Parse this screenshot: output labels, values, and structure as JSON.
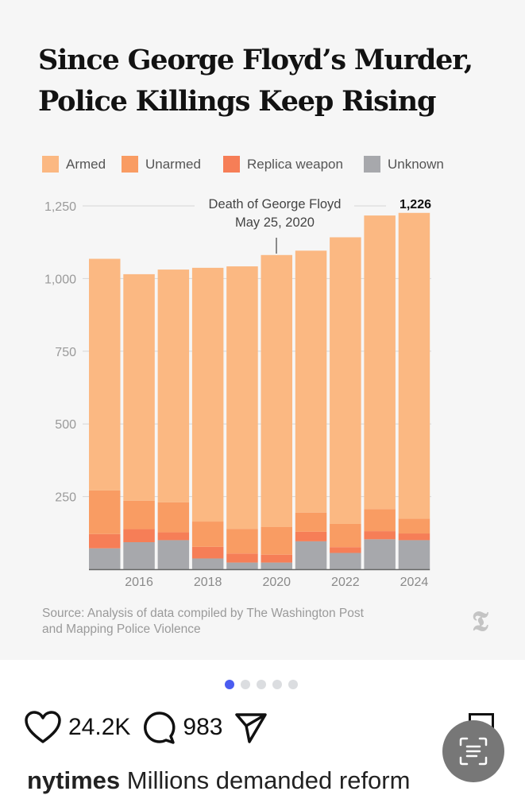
{
  "post": {
    "title_line1": "Since George Floyd’s Murder,",
    "title_line2": "Police Killings Keep Rising",
    "source_line1": "Source: Analysis of data compiled by The Washington Post",
    "source_line2": "and Mapping Police Violence",
    "logo_text": "𝕿",
    "carousel": {
      "total": 5,
      "active": 0
    },
    "likes": "24.2K",
    "comments": "983",
    "caption_user": "nytimes",
    "caption_text": "Millions demanded reform"
  },
  "chart_data": {
    "type": "bar",
    "stacked": true,
    "title": "Since George Floyd’s Murder, Police Killings Keep Rising",
    "xlabel": "",
    "ylabel": "",
    "ylim": [
      0,
      1250
    ],
    "yticks": [
      250,
      500,
      750,
      1000,
      1250
    ],
    "ytick_labels": [
      "250",
      "500",
      "750",
      "1,000",
      "1,250"
    ],
    "categories": [
      "2015",
      "2016",
      "2017",
      "2018",
      "2019",
      "2020",
      "2021",
      "2022",
      "2023",
      "2024"
    ],
    "xtick_labels": [
      "2016",
      "2018",
      "2020",
      "2022",
      "2024"
    ],
    "legend_position": "top-left",
    "series": [
      {
        "name": "Unknown",
        "color": "#a7a8ac",
        "values": [
          72,
          93,
          100,
          37,
          23,
          23,
          96,
          56,
          103,
          100
        ]
      },
      {
        "name": "Replica weapon",
        "color": "#f67e57",
        "values": [
          49,
          45,
          27,
          40,
          31,
          27,
          33,
          20,
          28,
          23
        ]
      },
      {
        "name": "Unarmed",
        "color": "#f99c63",
        "values": [
          150,
          98,
          103,
          87,
          85,
          95,
          66,
          80,
          76,
          51
        ]
      },
      {
        "name": "Armed",
        "color": "#fbb882",
        "values": [
          797,
          779,
          801,
          873,
          903,
          936,
          901,
          986,
          1010,
          1052
        ]
      }
    ],
    "legend_order": [
      "Armed",
      "Unarmed",
      "Replica weapon",
      "Unknown"
    ],
    "annotations": {
      "event_line1": "Death of George Floyd",
      "event_line2": "May 25, 2020",
      "event_year": "2020",
      "last_value_label": "1,226"
    }
  }
}
